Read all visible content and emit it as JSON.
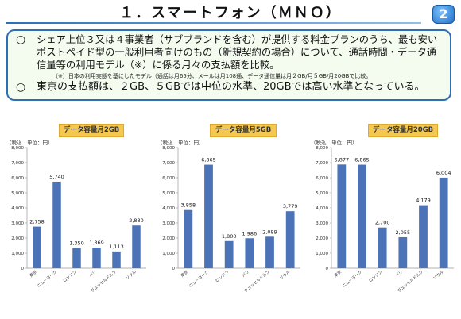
{
  "page": {
    "title": "１．スマートフォン（ＭＮＯ）",
    "page_number": "2",
    "bullets": [
      {
        "marker": "○",
        "text": "シェア上位３又は４事業者（サブブランドを含む）が提供する料金プランのうち、最も安いポストペイド型の一般利用者向けのもの（新規契約の場合）について、通話時間・データ通信量等の利用モデル（※）に係る月々の支払額を比較。"
      },
      {
        "marker": "○",
        "text": "東京の支払額は、２GB、５GBでは中位の水準、20GBでは高い水準となっている。"
      }
    ],
    "note": "（※）日本の利用実態を基にしたモデル（通話は月65分、メールは月108通、データ通信量は月２GB/月５GB/月20GBで比較。",
    "colors": {
      "bar": "#4c73b7",
      "badge": "#f5c94f",
      "frame": "#2d6fb7"
    }
  },
  "chart_data": [
    {
      "type": "bar",
      "title": "データ容量月2GB",
      "unit_label": "（税込　単位：円）",
      "categories": [
        "東京",
        "ニューヨーク",
        "ロンドン",
        "パリ",
        "デュッセルドルフ",
        "ソウル"
      ],
      "values": [
        2758,
        5740,
        1350,
        1369,
        1113,
        2830
      ],
      "value_labels": [
        "2,758",
        "5,740",
        "1,350",
        "1,369",
        "1,113",
        "2,830"
      ],
      "ylim": [
        0,
        8000
      ],
      "yticks": [
        "0",
        "1,000",
        "2,000",
        "3,000",
        "4,000",
        "5,000",
        "6,000",
        "7,000",
        "8,000"
      ],
      "grid": false
    },
    {
      "type": "bar",
      "title": "データ容量月5GB",
      "unit_label": "（税込　単位：円）",
      "categories": [
        "東京",
        "ニューヨーク",
        "ロンドン",
        "パリ",
        "デュッセルドルフ",
        "ソウル"
      ],
      "values": [
        3858,
        6865,
        1800,
        1986,
        2089,
        3779
      ],
      "value_labels": [
        "3,858",
        "6,865",
        "1,800",
        "1,986",
        "2,089",
        "3,779"
      ],
      "ylim": [
        0,
        8000
      ],
      "yticks": [
        "0",
        "1,000",
        "2,000",
        "3,000",
        "4,000",
        "5,000",
        "6,000",
        "7,000",
        "8,000"
      ],
      "grid": false
    },
    {
      "type": "bar",
      "title": "データ容量月20GB",
      "unit_label": "（税込　単位：円）",
      "categories": [
        "東京",
        "ニューヨーク",
        "ロンドン",
        "パリ",
        "デュッセルドルフ",
        "ソウル"
      ],
      "values": [
        6877,
        6865,
        2700,
        2055,
        4179,
        6004
      ],
      "value_labels": [
        "6,877",
        "6,865",
        "2,700",
        "2,055",
        "4,179",
        "6,004"
      ],
      "ylim": [
        0,
        8000
      ],
      "yticks": [
        "0",
        "1,000",
        "2,000",
        "3,000",
        "4,000",
        "5,000",
        "6,000",
        "7,000",
        "8,000"
      ],
      "grid": false
    }
  ]
}
